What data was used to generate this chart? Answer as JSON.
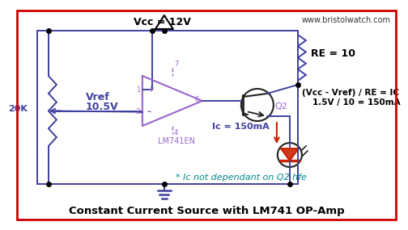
{
  "title": "Constant Current Source with LM741 OP-Amp",
  "subtitle": "* Ic not dependant on Q2 hfe",
  "website": "www.bristolwatch.com",
  "bg_color": "#ffffff",
  "border_color": "#cc0000",
  "text_vcc": "Vcc = 12V",
  "text_re": "RE = 10",
  "text_formula_line1": "(Vcc - Vref) / RE = IC",
  "text_formula_line2": "1.5V / 10 = 150mA",
  "text_vref_line1": "Vref",
  "text_vref_line2": "10.5V",
  "text_20k": "20K",
  "text_u1": "LM741EN",
  "text_q2": "Q2",
  "text_ic": "Ic = 150mA",
  "opamp_color": "#9966cc",
  "wire_color": "#4040a0",
  "title_color": "#000000",
  "subtitle_color": "#008888",
  "website_color": "#333333",
  "re_label_color": "#000000",
  "formula_color": "#000000",
  "led_color": "#cc2200",
  "transistor_color": "#222222",
  "vcc_color": "#000000",
  "dot_color": "#000000"
}
